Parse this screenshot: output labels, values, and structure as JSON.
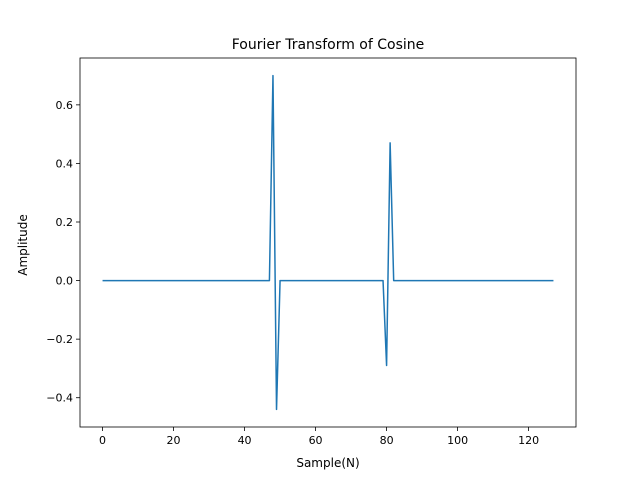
{
  "chart_data": {
    "type": "line",
    "title": "Fourier Transform of Cosine",
    "xlabel": "Sample(N)",
    "ylabel": "Amplitude",
    "xlim": [
      -6.35,
      133.35
    ],
    "ylim": [
      -0.5,
      0.76
    ],
    "xticks": [
      0,
      20,
      40,
      60,
      80,
      100,
      120
    ],
    "xtick_labels": [
      "0",
      "20",
      "40",
      "60",
      "80",
      "100",
      "120"
    ],
    "yticks": [
      -0.4,
      -0.2,
      0.0,
      0.2,
      0.4,
      0.6
    ],
    "ytick_labels": [
      "−0.4",
      "−0.2",
      "0.0",
      "0.2",
      "0.4",
      "0.6"
    ],
    "grid": false,
    "series": [
      {
        "color": "#1f77b4",
        "x": [
          0,
          47,
          48,
          49,
          50,
          79,
          80,
          81,
          82,
          127
        ],
        "y": [
          0,
          0,
          0.7,
          -0.44,
          0,
          0,
          -0.29,
          0.47,
          0,
          0
        ]
      }
    ]
  }
}
